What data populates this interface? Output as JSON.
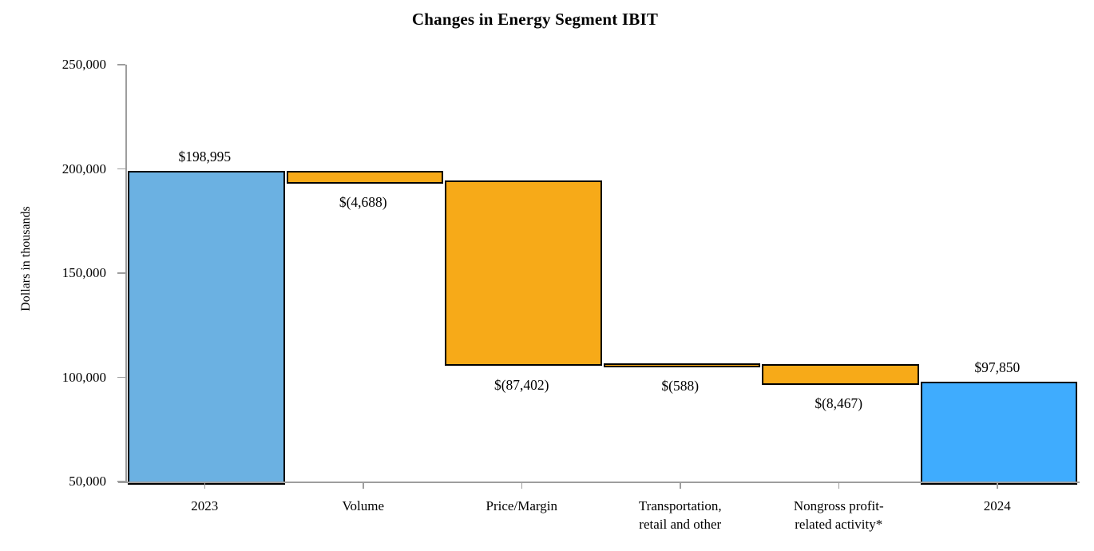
{
  "colors": {
    "bar_2023": "#6BB1E2",
    "bar_2024": "#3FACFE",
    "negative": "#F7AA18",
    "bar_border": "#000000",
    "axis": "#9E9E9E",
    "text": "#000000"
  },
  "chart_data": {
    "type": "bar",
    "subtype": "waterfall",
    "title": "Changes in Energy Segment IBIT",
    "ylabel": "Dollars in thousands",
    "xlabel": "",
    "ylim": [
      50000,
      250000
    ],
    "ytick_interval": 50000,
    "grid": false,
    "legend": false,
    "yticks": [
      {
        "value": 250000,
        "label": "250,000"
      },
      {
        "value": 200000,
        "label": "200,000"
      },
      {
        "value": 150000,
        "label": "150,000"
      },
      {
        "value": 100000,
        "label": "100,000"
      },
      {
        "value": 50000,
        "label": "50,000"
      }
    ],
    "categories": [
      "2023",
      "Volume",
      "Price/Margin",
      "Transportation, retail and other",
      "Nongross profit-related activity*",
      "2024"
    ],
    "bars": [
      {
        "name": "2023",
        "label_lines": [
          "2023"
        ],
        "value": 198995,
        "display": "$198,995",
        "start": 50000,
        "end": 198995,
        "color": "bar_2023",
        "label_position": "above"
      },
      {
        "name": "volume",
        "label_lines": [
          "Volume"
        ],
        "value": -4688,
        "display": "$(4,688)",
        "start": 198995,
        "end": 194307,
        "color": "negative",
        "label_position": "below"
      },
      {
        "name": "price-margin",
        "label_lines": [
          "Price/Margin"
        ],
        "value": -87402,
        "display": "$(87,402)",
        "start": 194307,
        "end": 106905,
        "color": "negative",
        "label_position": "below"
      },
      {
        "name": "transportation-retail-and-other",
        "label_lines": [
          "Transportation,",
          "retail and other"
        ],
        "value": -588,
        "display": "$(588)",
        "start": 106905,
        "end": 106317,
        "color": "negative",
        "label_position": "below"
      },
      {
        "name": "nongross-profit-related-activity",
        "label_lines": [
          "Nongross profit-",
          "related activity*"
        ],
        "value": -8467,
        "display": "$(8,467)",
        "start": 106317,
        "end": 97850,
        "color": "negative",
        "label_position": "below"
      },
      {
        "name": "2024",
        "label_lines": [
          "2024"
        ],
        "value": 97850,
        "display": "$97,850",
        "start": 50000,
        "end": 97850,
        "color": "bar_2024",
        "label_position": "above"
      }
    ]
  }
}
